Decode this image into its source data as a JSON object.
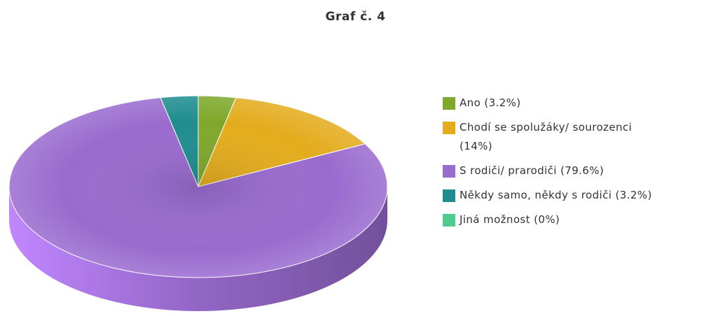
{
  "chart_data": {
    "type": "pie",
    "title": "Graf č. 4",
    "categories": [
      "Ano (3.2%)",
      "Chodí se spolužáky/ sourozenci (14%)",
      "S rodiči/ prarodiči (79.6%)",
      "Někdy samo, někdy s rodiči (3.2%)",
      "Jiná možnost (0%)"
    ],
    "values": [
      3.2,
      14,
      79.6,
      3.2,
      0
    ],
    "colors": [
      "#7ea82b",
      "#e3ac1d",
      "#9a6bcf",
      "#1f8d8f",
      "#4fcb8e"
    ]
  }
}
